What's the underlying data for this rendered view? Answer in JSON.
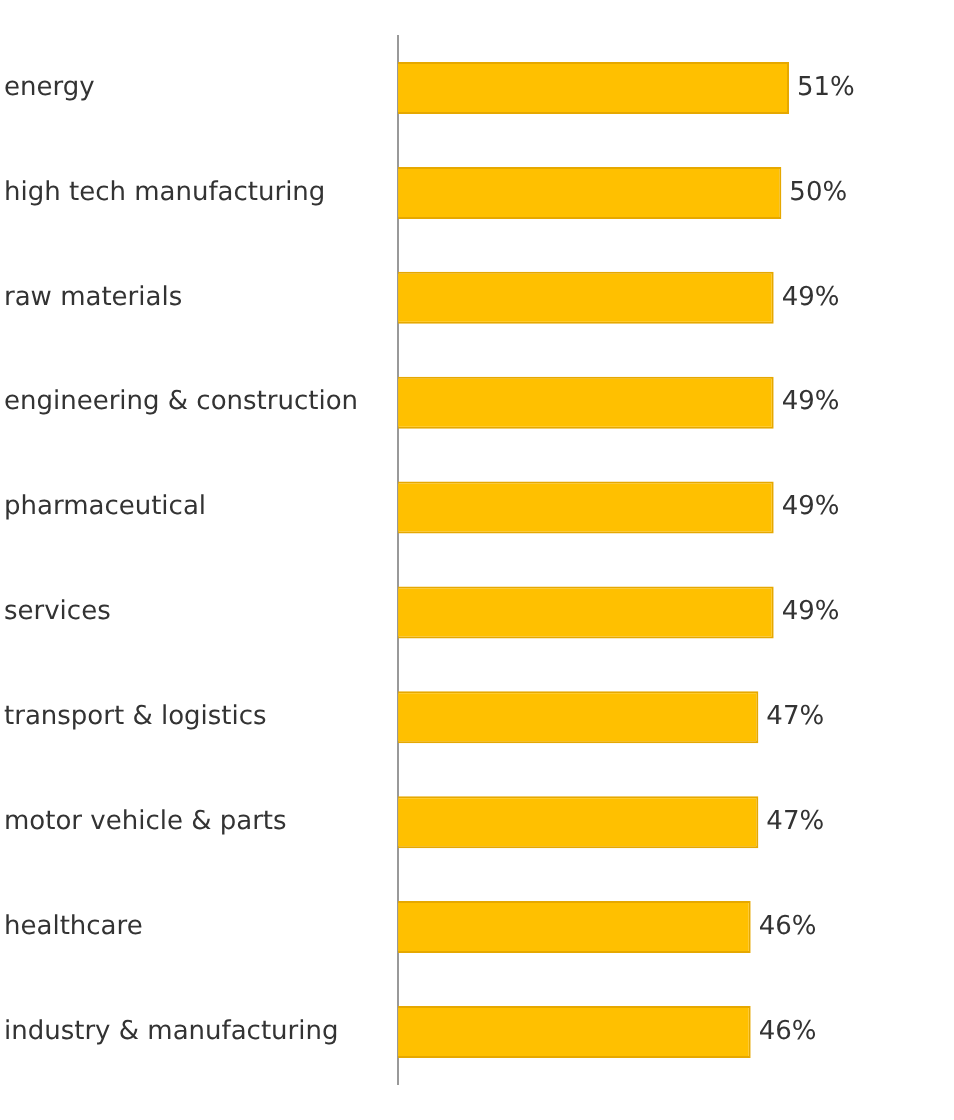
{
  "chart_data": {
    "type": "bar",
    "orientation": "horizontal",
    "categories": [
      "energy",
      "high tech manufacturing",
      "raw materials",
      "engineering & construction",
      "pharmaceutical",
      "services",
      "transport & logistics",
      "motor vehicle & parts",
      "healthcare",
      "industry & manufacturing"
    ],
    "values": [
      51,
      50,
      49,
      49,
      49,
      49,
      47,
      47,
      46,
      46
    ],
    "value_labels": [
      "51%",
      "50%",
      "49%",
      "49%",
      "49%",
      "49%",
      "47%",
      "47%",
      "46%",
      "46%"
    ],
    "color": "#ffc000",
    "tick_labels": "y"
  }
}
